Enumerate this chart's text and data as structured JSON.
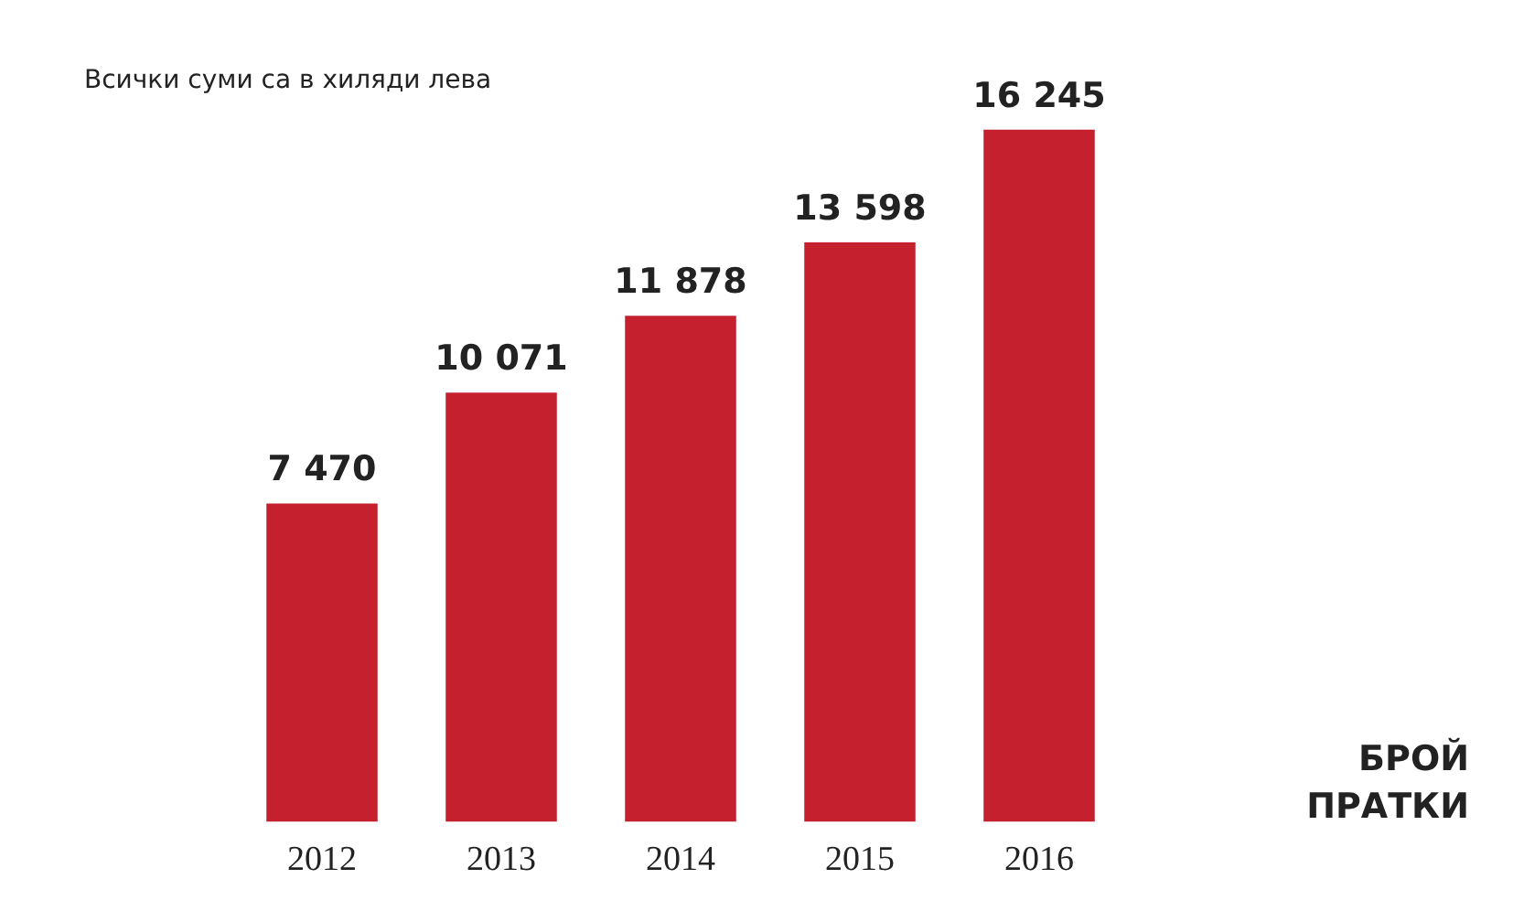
{
  "chart_data": {
    "type": "bar",
    "categories": [
      "2012",
      "2013",
      "2014",
      "2015",
      "2016"
    ],
    "values": [
      7470,
      10071,
      11878,
      13598,
      16245
    ],
    "value_labels": [
      "7 470",
      "10 071",
      "11 878",
      "13 598",
      "16 245"
    ],
    "color": "#c4202e",
    "annotations": [
      "Всички суми са в хиляди лева",
      "БРОЙ ПРАТКИ"
    ],
    "grid": false,
    "legend": false,
    "tick_labels": "x"
  }
}
